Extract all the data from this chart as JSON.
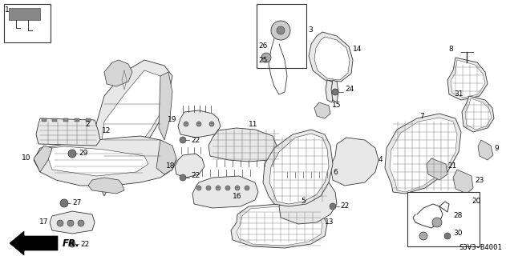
{
  "bg_color": "#ffffff",
  "line_color": "#333333",
  "text_color": "#000000",
  "diagram_code": "S3V3-B4001",
  "font_size": 6.5,
  "lw": 0.6,
  "fill_light": "#e8e8e8",
  "fill_medium": "#d5d5d5",
  "fill_dark": "#c0c0c0"
}
